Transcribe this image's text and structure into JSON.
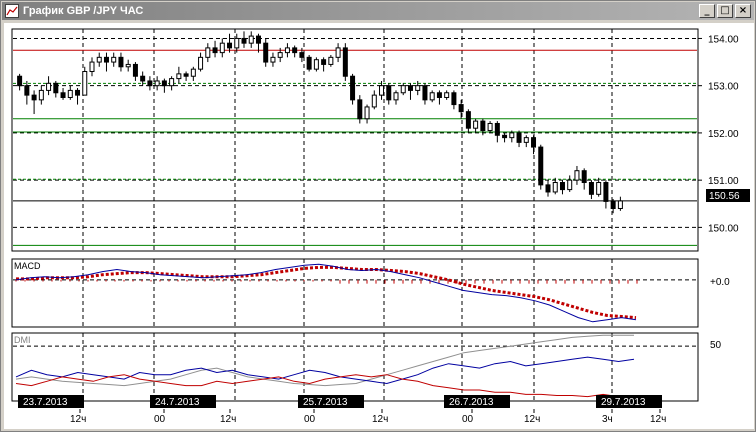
{
  "window": {
    "title": "График GBP /JPY  ЧАС",
    "buttons": {
      "minimize": "_",
      "maximize": "□",
      "close": "×"
    }
  },
  "chart_data": {
    "type": "candlestick",
    "symbol": "GBP/JPY",
    "timeframe": "1H",
    "price_axis": {
      "min": 149.5,
      "max": 154.2,
      "ticks": [
        "154.00",
        "153.00",
        "152.00",
        "151.00",
        "150.00"
      ],
      "current_price": "150.56"
    },
    "horizontal_lines": [
      {
        "price": 153.75,
        "color": "#c00000"
      },
      {
        "price": 153.05,
        "color": "#008000",
        "dashed": true
      },
      {
        "price": 152.3,
        "color": "#008000"
      },
      {
        "price": 152.02,
        "color": "#008000"
      },
      {
        "price": 151.02,
        "color": "#008000",
        "dashed": true
      },
      {
        "price": 150.56,
        "color": "#000000"
      },
      {
        "price": 149.62,
        "color": "#008000"
      }
    ],
    "candles": [
      [
        153.2,
        153.0,
        152.9,
        153.25
      ],
      [
        153.0,
        152.8,
        152.6,
        153.1
      ],
      [
        152.8,
        152.7,
        152.4,
        152.9
      ],
      [
        152.7,
        152.9,
        152.6,
        153.0
      ],
      [
        152.9,
        153.05,
        152.8,
        153.2
      ],
      [
        153.05,
        152.85,
        152.75,
        153.1
      ],
      [
        152.85,
        152.75,
        152.7,
        152.95
      ],
      [
        152.75,
        152.9,
        152.7,
        153.0
      ],
      [
        152.9,
        152.8,
        152.6,
        152.95
      ],
      [
        152.8,
        153.3,
        152.8,
        153.4
      ],
      [
        153.3,
        153.5,
        153.2,
        153.6
      ],
      [
        153.5,
        153.6,
        153.4,
        153.7
      ],
      [
        153.6,
        153.5,
        153.3,
        153.7
      ],
      [
        153.5,
        153.6,
        153.4,
        153.7
      ],
      [
        153.6,
        153.4,
        153.3,
        153.7
      ],
      [
        153.4,
        153.45,
        153.3,
        153.55
      ],
      [
        153.45,
        153.2,
        153.1,
        153.5
      ],
      [
        153.2,
        153.1,
        153.0,
        153.3
      ],
      [
        153.1,
        153.0,
        152.9,
        153.2
      ],
      [
        153.0,
        153.1,
        152.9,
        153.2
      ],
      [
        153.1,
        153.0,
        152.85,
        153.15
      ],
      [
        153.0,
        153.15,
        152.9,
        153.2
      ],
      [
        153.15,
        153.25,
        153.05,
        153.4
      ],
      [
        153.25,
        153.2,
        153.1,
        153.3
      ],
      [
        153.2,
        153.35,
        153.1,
        153.4
      ],
      [
        153.35,
        153.6,
        153.3,
        153.7
      ],
      [
        153.6,
        153.8,
        153.5,
        153.9
      ],
      [
        153.8,
        153.7,
        153.6,
        153.95
      ],
      [
        153.7,
        153.9,
        153.6,
        154.0
      ],
      [
        153.9,
        153.8,
        153.7,
        154.1
      ],
      [
        153.8,
        154.0,
        153.7,
        154.1
      ],
      [
        154.0,
        153.9,
        153.8,
        154.15
      ],
      [
        153.9,
        154.05,
        153.8,
        154.15
      ],
      [
        154.05,
        153.9,
        153.7,
        154.1
      ],
      [
        153.9,
        153.5,
        153.4,
        154.0
      ],
      [
        153.5,
        153.6,
        153.4,
        153.7
      ],
      [
        153.6,
        153.7,
        153.5,
        153.8
      ],
      [
        153.7,
        153.8,
        153.6,
        153.9
      ],
      [
        153.8,
        153.7,
        153.6,
        153.85
      ],
      [
        153.7,
        153.6,
        153.5,
        153.8
      ],
      [
        153.6,
        153.35,
        153.3,
        153.65
      ],
      [
        153.35,
        153.55,
        153.3,
        153.6
      ],
      [
        153.55,
        153.45,
        153.3,
        153.6
      ],
      [
        153.45,
        153.6,
        153.4,
        153.65
      ],
      [
        153.6,
        153.8,
        153.5,
        153.9
      ],
      [
        153.8,
        153.2,
        153.1,
        153.9
      ],
      [
        153.2,
        152.7,
        152.6,
        153.25
      ],
      [
        152.7,
        152.3,
        152.2,
        152.8
      ],
      [
        152.3,
        152.55,
        152.2,
        152.6
      ],
      [
        152.55,
        152.8,
        152.5,
        152.9
      ],
      [
        152.8,
        153.0,
        152.7,
        153.1
      ],
      [
        153.0,
        152.7,
        152.6,
        153.05
      ],
      [
        152.7,
        152.85,
        152.6,
        152.9
      ],
      [
        152.85,
        153.0,
        152.8,
        153.05
      ],
      [
        153.0,
        152.9,
        152.7,
        153.05
      ],
      [
        152.9,
        153.0,
        152.8,
        153.1
      ],
      [
        153.0,
        152.7,
        152.6,
        153.05
      ],
      [
        152.7,
        152.85,
        152.65,
        152.9
      ],
      [
        152.85,
        152.75,
        152.6,
        152.9
      ],
      [
        152.75,
        152.85,
        152.7,
        152.9
      ],
      [
        152.85,
        152.6,
        152.5,
        152.9
      ],
      [
        152.6,
        152.45,
        152.3,
        152.7
      ],
      [
        152.45,
        152.1,
        152.0,
        152.5
      ],
      [
        152.1,
        152.25,
        152.0,
        152.3
      ],
      [
        152.25,
        152.05,
        151.95,
        152.3
      ],
      [
        152.05,
        152.2,
        152.0,
        152.25
      ],
      [
        152.2,
        151.95,
        151.8,
        152.25
      ],
      [
        151.95,
        151.9,
        151.8,
        152.0
      ],
      [
        151.9,
        152.0,
        151.8,
        152.05
      ],
      [
        152.0,
        151.8,
        151.7,
        152.05
      ],
      [
        151.8,
        151.9,
        151.7,
        151.95
      ],
      [
        151.9,
        151.7,
        151.55,
        151.95
      ],
      [
        151.7,
        150.9,
        150.8,
        151.75
      ],
      [
        150.9,
        150.75,
        150.65,
        151.0
      ],
      [
        150.75,
        150.95,
        150.7,
        151.05
      ],
      [
        150.95,
        150.8,
        150.7,
        151.0
      ],
      [
        150.8,
        151.0,
        150.75,
        151.1
      ],
      [
        151.0,
        151.2,
        150.9,
        151.3
      ],
      [
        151.2,
        150.95,
        150.8,
        151.25
      ],
      [
        150.95,
        150.7,
        150.6,
        151.0
      ],
      [
        150.7,
        150.95,
        150.65,
        151.05
      ],
      [
        150.95,
        150.55,
        150.4,
        151.0
      ],
      [
        150.55,
        150.4,
        150.3,
        150.6
      ],
      [
        150.4,
        150.56,
        150.35,
        150.65
      ]
    ],
    "macd": {
      "label": "MACD",
      "zero_label": "+0.0",
      "macd_line": [
        0,
        0.02,
        0.03,
        0.02,
        0.03,
        0.05,
        0.08,
        0.1,
        0.08,
        0.07,
        0.05,
        0.04,
        0.03,
        0.02,
        0.03,
        0.04,
        0.05,
        0.07,
        0.1,
        0.12,
        0.14,
        0.15,
        0.13,
        0.1,
        0.09,
        0.1,
        0.08,
        0.05,
        0.02,
        -0.02,
        -0.06,
        -0.1,
        -0.12,
        -0.14,
        -0.15,
        -0.17,
        -0.2,
        -0.24,
        -0.3,
        -0.36,
        -0.4,
        -0.38,
        -0.36,
        -0.38
      ],
      "signal_line": [
        0.01,
        0.01,
        0.02,
        0.02,
        0.02,
        0.03,
        0.05,
        0.06,
        0.07,
        0.07,
        0.06,
        0.05,
        0.04,
        0.03,
        0.03,
        0.03,
        0.04,
        0.05,
        0.07,
        0.09,
        0.11,
        0.12,
        0.12,
        0.11,
        0.1,
        0.1,
        0.09,
        0.08,
        0.06,
        0.03,
        0.0,
        -0.04,
        -0.07,
        -0.1,
        -0.12,
        -0.14,
        -0.16,
        -0.19,
        -0.23,
        -0.27,
        -0.31,
        -0.34,
        -0.35,
        -0.36
      ]
    },
    "dmi": {
      "label": "DMI",
      "level_label": "50",
      "adx": [
        20,
        22,
        20,
        18,
        17,
        16,
        15,
        14,
        16,
        18,
        20,
        24,
        28,
        30,
        26,
        22,
        20,
        18,
        16,
        15,
        14,
        15,
        16,
        20,
        24,
        28,
        32,
        36,
        40,
        44,
        46,
        48,
        50,
        52,
        54,
        56,
        58,
        59,
        60,
        60,
        60
      ],
      "plus_di": [
        22,
        28,
        24,
        22,
        26,
        24,
        22,
        20,
        26,
        24,
        24,
        28,
        30,
        26,
        28,
        24,
        22,
        20,
        24,
        28,
        26,
        22,
        20,
        18,
        16,
        20,
        24,
        30,
        34,
        32,
        30,
        34,
        36,
        32,
        34,
        36,
        38,
        40,
        38,
        36,
        38
      ],
      "minus_di": [
        16,
        14,
        18,
        22,
        20,
        18,
        22,
        24,
        20,
        18,
        16,
        14,
        14,
        18,
        16,
        18,
        20,
        22,
        18,
        16,
        20,
        22,
        24,
        22,
        24,
        20,
        18,
        14,
        12,
        10,
        10,
        8,
        8,
        6,
        6,
        5,
        5,
        4,
        6,
        4,
        5
      ]
    },
    "time_axis": {
      "date_labels": [
        "23.7.2013",
        "24.7.2013",
        "25.7.2013",
        "26.7.2013",
        "29.7.2013"
      ],
      "hour_labels": [
        "12ч",
        "00",
        "12ч",
        "00",
        "12ч",
        "00",
        "12ч",
        "3ч",
        "12ч"
      ]
    }
  }
}
